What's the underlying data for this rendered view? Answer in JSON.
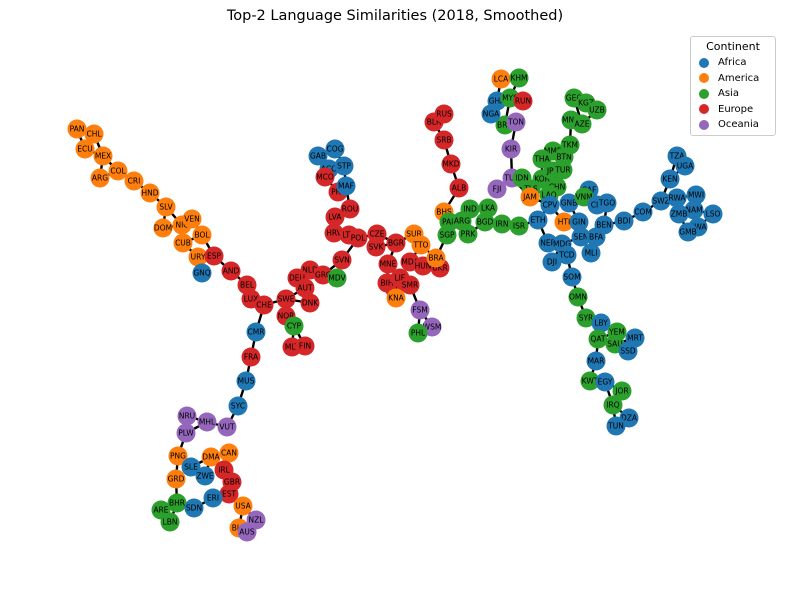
{
  "chart_data": {
    "type": "network",
    "title": "Top-2 Language Similarities (2018, Smoothed)",
    "legend": {
      "title": "Continent",
      "placement": "top-right",
      "entries": [
        {
          "name": "Africa",
          "color": "#1f77b4"
        },
        {
          "name": "America",
          "color": "#ff7f0e"
        },
        {
          "name": "Asia",
          "color": "#2ca02c"
        },
        {
          "name": "Europe",
          "color": "#d62728"
        },
        {
          "name": "Oceania",
          "color": "#9467bd"
        }
      ]
    },
    "nodes": [
      {
        "id": "PAN",
        "continent": "America"
      },
      {
        "id": "CHL",
        "continent": "America"
      },
      {
        "id": "ECU",
        "continent": "America"
      },
      {
        "id": "MEX",
        "continent": "America"
      },
      {
        "id": "COL",
        "continent": "America"
      },
      {
        "id": "ARG",
        "continent": "America"
      },
      {
        "id": "CRI",
        "continent": "America"
      },
      {
        "id": "HND",
        "continent": "America"
      },
      {
        "id": "SLV",
        "continent": "America"
      },
      {
        "id": "DOM",
        "continent": "America"
      },
      {
        "id": "NIC",
        "continent": "America"
      },
      {
        "id": "VEN",
        "continent": "America"
      },
      {
        "id": "CUB",
        "continent": "America"
      },
      {
        "id": "BOL",
        "continent": "America"
      },
      {
        "id": "URY",
        "continent": "America"
      },
      {
        "id": "ESP",
        "continent": "Europe"
      },
      {
        "id": "GNQ",
        "continent": "Africa"
      },
      {
        "id": "AND",
        "continent": "Europe"
      },
      {
        "id": "BEL",
        "continent": "Europe"
      },
      {
        "id": "LUX",
        "continent": "Europe"
      },
      {
        "id": "CHE",
        "continent": "Europe"
      },
      {
        "id": "CMR",
        "continent": "Africa"
      },
      {
        "id": "FRA",
        "continent": "Europe"
      },
      {
        "id": "MUS",
        "continent": "Africa"
      },
      {
        "id": "SYC",
        "continent": "Africa"
      },
      {
        "id": "VUT",
        "continent": "Oceania"
      },
      {
        "id": "MHL",
        "continent": "Oceania"
      },
      {
        "id": "NRU",
        "continent": "Oceania"
      },
      {
        "id": "PLW",
        "continent": "Oceania"
      },
      {
        "id": "PNG",
        "continent": "America"
      },
      {
        "id": "GRD",
        "continent": "America"
      },
      {
        "id": "SLE",
        "continent": "Africa"
      },
      {
        "id": "ZWE",
        "continent": "Africa"
      },
      {
        "id": "DMA",
        "continent": "America"
      },
      {
        "id": "CAN",
        "continent": "America"
      },
      {
        "id": "IRL",
        "continent": "Europe"
      },
      {
        "id": "GBR",
        "continent": "Europe"
      },
      {
        "id": "EST",
        "continent": "Europe"
      },
      {
        "id": "ERI",
        "continent": "Africa"
      },
      {
        "id": "BHR",
        "continent": "Asia"
      },
      {
        "id": "SDN",
        "continent": "Africa"
      },
      {
        "id": "ARE",
        "continent": "Asia"
      },
      {
        "id": "LBN",
        "continent": "Asia"
      },
      {
        "id": "USA",
        "continent": "America"
      },
      {
        "id": "NZL",
        "continent": "Oceania"
      },
      {
        "id": "BLZ",
        "continent": "America"
      },
      {
        "id": "AUS",
        "continent": "Oceania"
      },
      {
        "id": "GAB",
        "continent": "Africa"
      },
      {
        "id": "COG",
        "continent": "Africa"
      },
      {
        "id": "ACO",
        "continent": "Africa"
      },
      {
        "id": "STP",
        "continent": "Africa"
      },
      {
        "id": "MCO",
        "continent": "Europe"
      },
      {
        "id": "PRT",
        "continent": "Europe"
      },
      {
        "id": "MAF",
        "continent": "Africa"
      },
      {
        "id": "ROU",
        "continent": "Europe"
      },
      {
        "id": "LVA",
        "continent": "Europe"
      },
      {
        "id": "HRV",
        "continent": "Europe"
      },
      {
        "id": "LTU",
        "continent": "Europe"
      },
      {
        "id": "POL",
        "continent": "Europe"
      },
      {
        "id": "SVN",
        "continent": "Europe"
      },
      {
        "id": "NLD",
        "continent": "Europe"
      },
      {
        "id": "GRC",
        "continent": "Europe"
      },
      {
        "id": "DEU",
        "continent": "Europe"
      },
      {
        "id": "AUT",
        "continent": "Europe"
      },
      {
        "id": "MDV",
        "continent": "Asia"
      },
      {
        "id": "SWE",
        "continent": "Europe"
      },
      {
        "id": "DNK",
        "continent": "Europe"
      },
      {
        "id": "NOR",
        "continent": "Europe"
      },
      {
        "id": "CYP",
        "continent": "Asia"
      },
      {
        "id": "MLT",
        "continent": "Europe"
      },
      {
        "id": "FIN",
        "continent": "Europe"
      },
      {
        "id": "CZE",
        "continent": "Europe"
      },
      {
        "id": "SVK",
        "continent": "Europe"
      },
      {
        "id": "BGR",
        "continent": "Europe"
      },
      {
        "id": "MNE",
        "continent": "Europe"
      },
      {
        "id": "SRB",
        "continent": "Europe"
      },
      {
        "id": "MKD",
        "continent": "Europe"
      },
      {
        "id": "ALB",
        "continent": "Europe"
      },
      {
        "id": "BLR",
        "continent": "Europe"
      },
      {
        "id": "RUS",
        "continent": "Europe"
      },
      {
        "id": "UKR",
        "continent": "Europe"
      },
      {
        "id": "ISL",
        "continent": "Europe"
      },
      {
        "id": "BIH",
        "continent": "Europe"
      },
      {
        "id": "LIE",
        "continent": "Europe"
      },
      {
        "id": "SMR",
        "continent": "Europe"
      },
      {
        "id": "GEO",
        "continent": "Asia"
      },
      {
        "id": "SUR",
        "continent": "America"
      },
      {
        "id": "TTO",
        "continent": "America"
      },
      {
        "id": "MDA",
        "continent": "Europe"
      },
      {
        "id": "HUN",
        "continent": "Europe"
      },
      {
        "id": "BRA",
        "continent": "America"
      },
      {
        "id": "KNA",
        "continent": "America"
      },
      {
        "id": "LKA",
        "continent": "Asia"
      },
      {
        "id": "IND",
        "continent": "Asia"
      },
      {
        "id": "BHS",
        "continent": "America"
      },
      {
        "id": "PAK",
        "continent": "Asia"
      },
      {
        "id": "ARG2",
        "continent": "Asia"
      },
      {
        "id": "SGP",
        "continent": "Asia"
      },
      {
        "id": "PRK",
        "continent": "Asia"
      },
      {
        "id": "BGD",
        "continent": "Asia"
      },
      {
        "id": "IRN",
        "continent": "Asia"
      },
      {
        "id": "ISR",
        "continent": "Asia"
      },
      {
        "id": "FSM",
        "continent": "Oceania"
      },
      {
        "id": "WSM",
        "continent": "Oceania"
      },
      {
        "id": "PHL",
        "continent": "Asia"
      },
      {
        "id": "LCA",
        "continent": "America"
      },
      {
        "id": "KHM",
        "continent": "Asia"
      },
      {
        "id": "GHA",
        "continent": "Africa"
      },
      {
        "id": "MYS",
        "continent": "Asia"
      },
      {
        "id": "BRN",
        "continent": "Asia"
      },
      {
        "id": "TON",
        "continent": "Oceania"
      },
      {
        "id": "NGA",
        "continent": "Africa"
      },
      {
        "id": "KIR",
        "continent": "Oceania"
      },
      {
        "id": "FJI",
        "continent": "Oceania"
      },
      {
        "id": "TUV",
        "continent": "Oceania"
      },
      {
        "id": "IDN",
        "continent": "Asia"
      },
      {
        "id": "MMR",
        "continent": "Asia"
      },
      {
        "id": "THA",
        "continent": "Asia"
      },
      {
        "id": "BTN",
        "continent": "Asia"
      },
      {
        "id": "TKM",
        "continent": "Asia"
      },
      {
        "id": "MNG",
        "continent": "Asia"
      },
      {
        "id": "AZE",
        "continent": "Asia"
      },
      {
        "id": "KGZ",
        "continent": "Asia"
      },
      {
        "id": "UZB",
        "continent": "Asia"
      },
      {
        "id": "KOR",
        "continent": "Asia"
      },
      {
        "id": "JPN",
        "continent": "Asia"
      },
      {
        "id": "CHN",
        "continent": "Asia"
      },
      {
        "id": "TUR",
        "continent": "Asia"
      },
      {
        "id": "TLS",
        "continent": "Asia"
      },
      {
        "id": "LAO",
        "continent": "Asia"
      },
      {
        "id": "JAM",
        "continent": "America"
      },
      {
        "id": "ETH",
        "continent": "Africa"
      },
      {
        "id": "CPV",
        "continent": "Africa"
      },
      {
        "id": "HTI",
        "continent": "America"
      },
      {
        "id": "NER",
        "continent": "Africa"
      },
      {
        "id": "MDG",
        "continent": "Africa"
      },
      {
        "id": "DJI",
        "continent": "Africa"
      },
      {
        "id": "TCD",
        "continent": "Africa"
      },
      {
        "id": "SOM",
        "continent": "Africa"
      },
      {
        "id": "GIN",
        "continent": "Africa"
      },
      {
        "id": "SEN",
        "continent": "Africa"
      },
      {
        "id": "BFA",
        "continent": "Africa"
      },
      {
        "id": "MLI",
        "continent": "Africa"
      },
      {
        "id": "GNB",
        "continent": "Africa"
      },
      {
        "id": "CAF",
        "continent": "Africa"
      },
      {
        "id": "VNM",
        "continent": "Asia"
      },
      {
        "id": "CIV",
        "continent": "Africa"
      },
      {
        "id": "TGO",
        "continent": "Africa"
      },
      {
        "id": "BEN",
        "continent": "Africa"
      },
      {
        "id": "BDI",
        "continent": "Africa"
      },
      {
        "id": "COM",
        "continent": "Africa"
      },
      {
        "id": "SWZ",
        "continent": "Africa"
      },
      {
        "id": "RWA",
        "continent": "Africa"
      },
      {
        "id": "KEN",
        "continent": "Africa"
      },
      {
        "id": "TZA",
        "continent": "Africa"
      },
      {
        "id": "UGA",
        "continent": "Africa"
      },
      {
        "id": "MWI",
        "continent": "Africa"
      },
      {
        "id": "NAM",
        "continent": "Africa"
      },
      {
        "id": "ZMB",
        "continent": "Africa"
      },
      {
        "id": "BWA",
        "continent": "Africa"
      },
      {
        "id": "LSO",
        "continent": "Africa"
      },
      {
        "id": "GMB",
        "continent": "Africa"
      },
      {
        "id": "OMN",
        "continent": "Asia"
      },
      {
        "id": "SYR",
        "continent": "Asia"
      },
      {
        "id": "LBY",
        "continent": "Africa"
      },
      {
        "id": "YEM",
        "continent": "Asia"
      },
      {
        "id": "QAT",
        "continent": "Asia"
      },
      {
        "id": "SAU",
        "continent": "Asia"
      },
      {
        "id": "MRT",
        "continent": "Africa"
      },
      {
        "id": "SSD",
        "continent": "Africa"
      },
      {
        "id": "MAR",
        "continent": "Africa"
      },
      {
        "id": "KWT",
        "continent": "Asia"
      },
      {
        "id": "EGY",
        "continent": "Africa"
      },
      {
        "id": "JOR",
        "continent": "Asia"
      },
      {
        "id": "IRQ",
        "continent": "Asia"
      },
      {
        "id": "DZA",
        "continent": "Africa"
      },
      {
        "id": "TUN",
        "continent": "Africa"
      }
    ]
  }
}
